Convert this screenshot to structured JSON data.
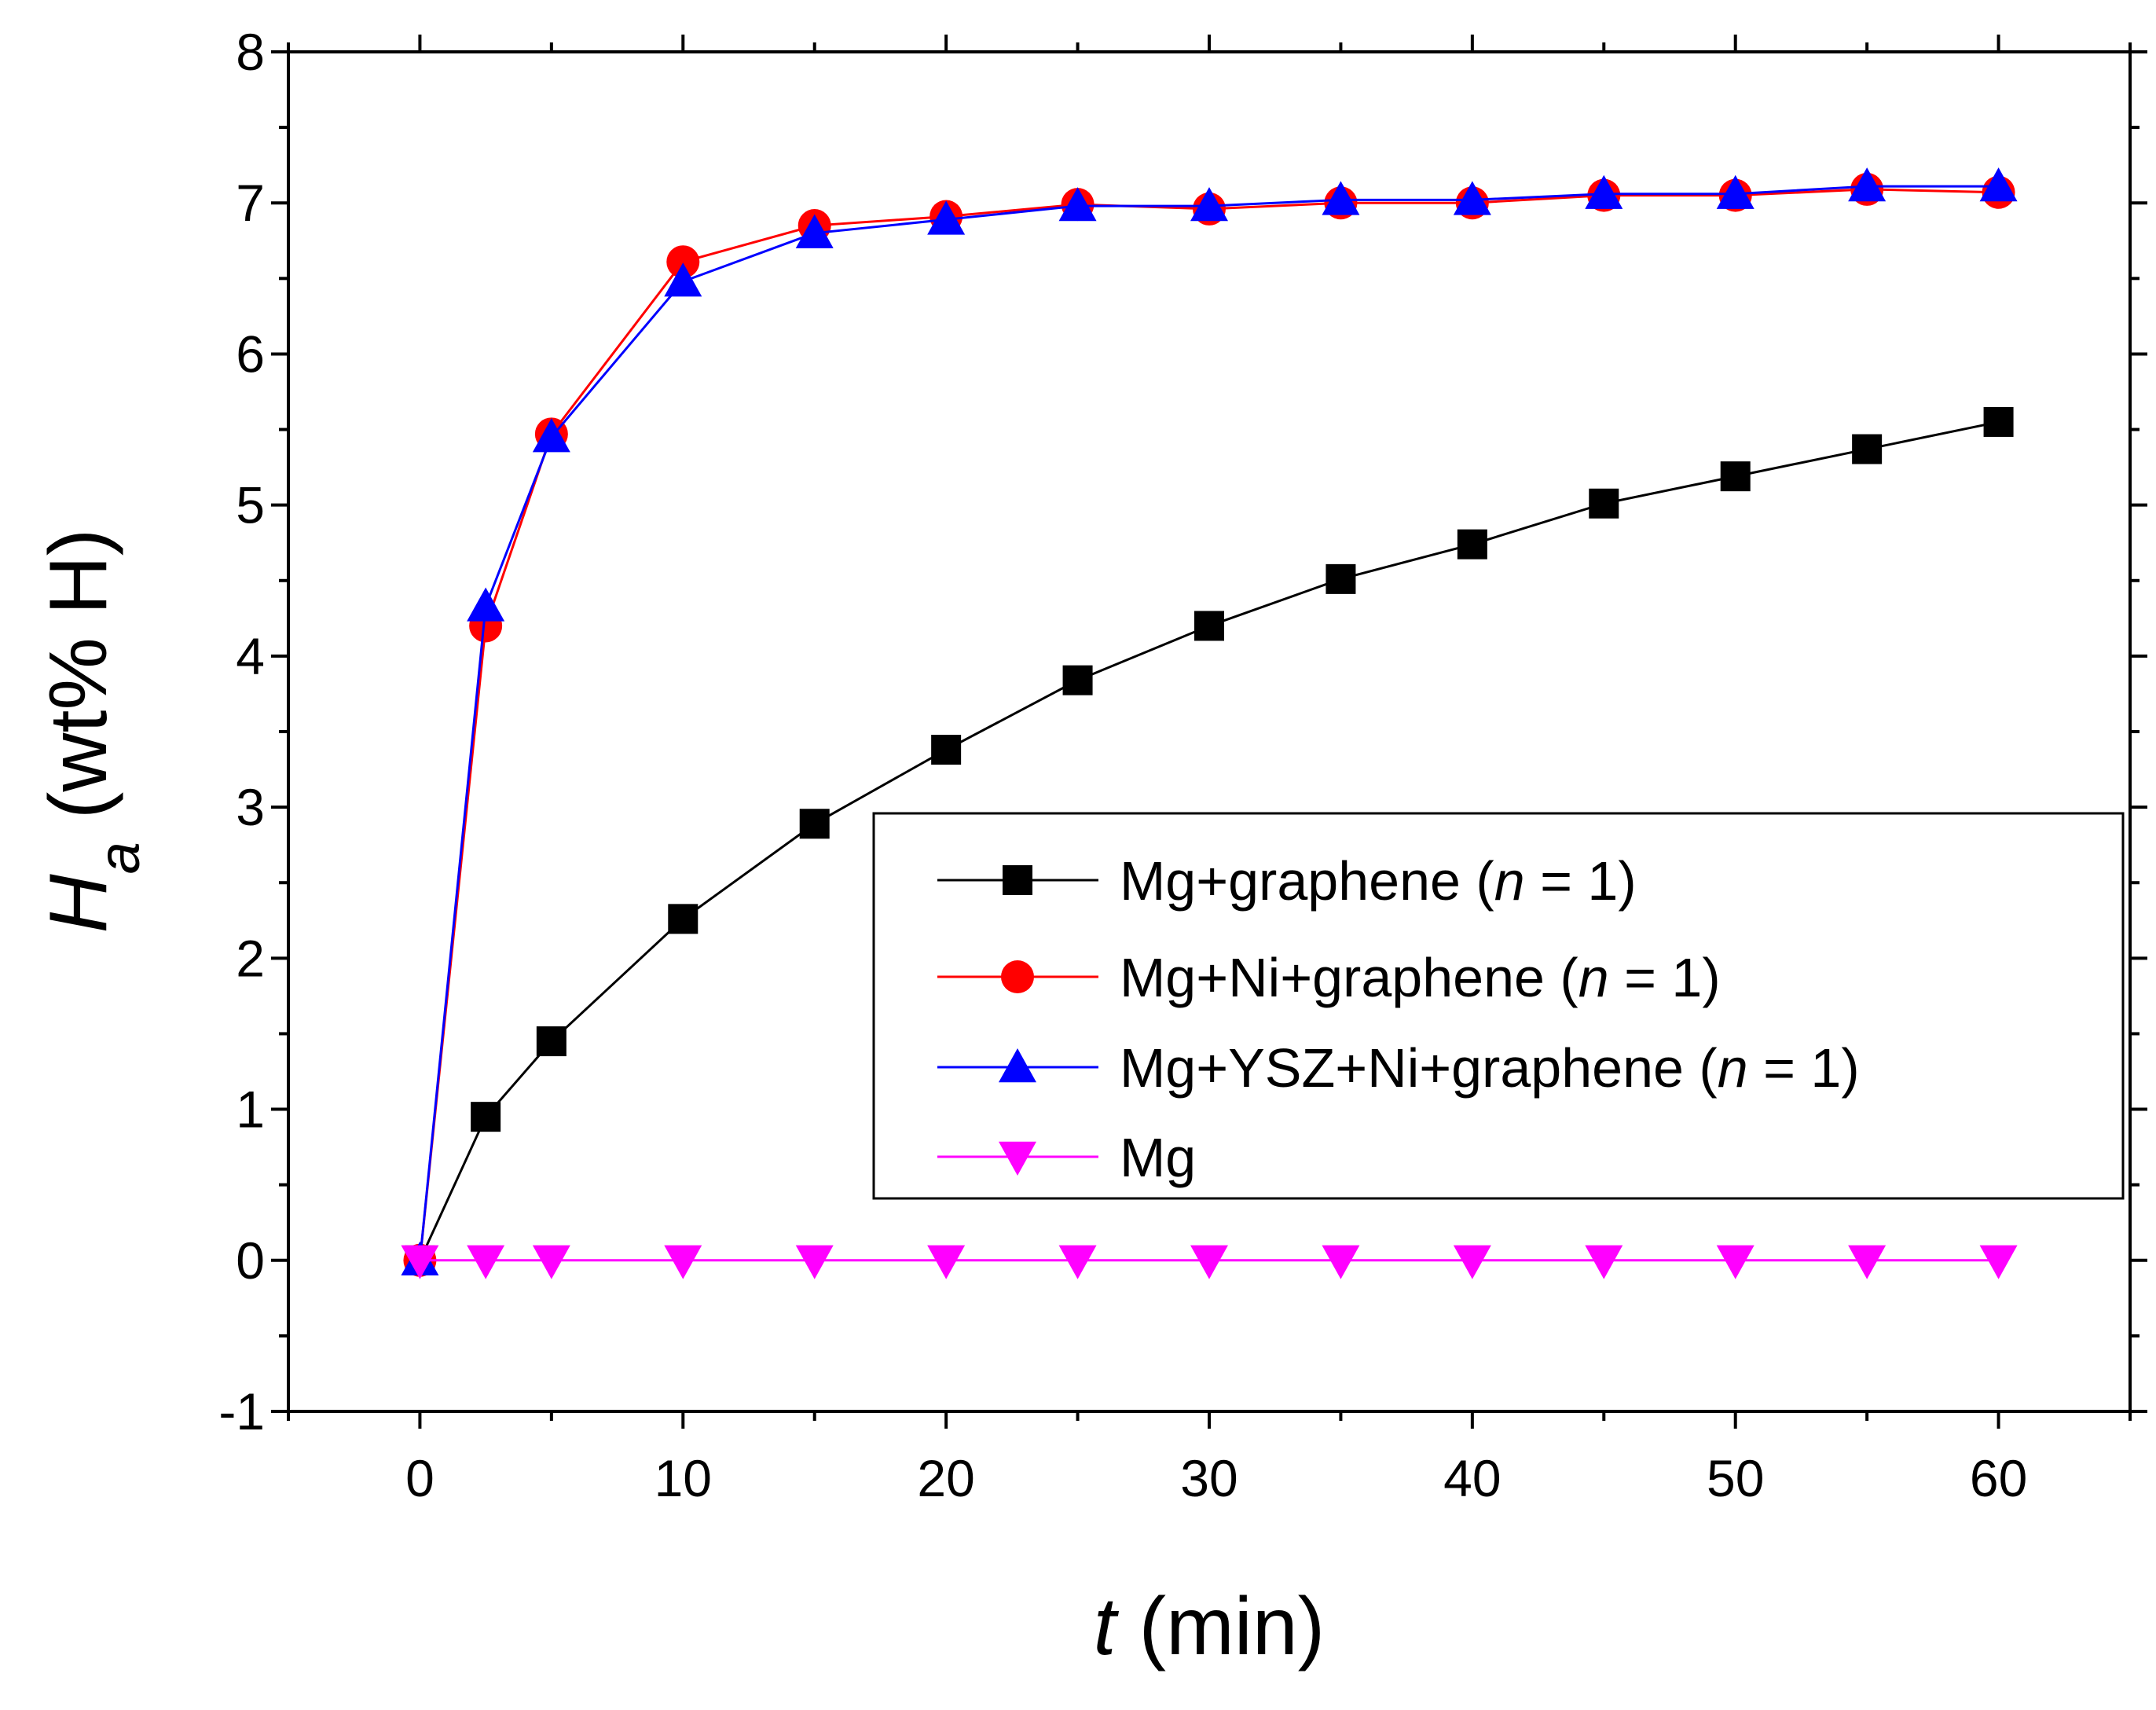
{
  "chart_data": {
    "type": "line",
    "title": "",
    "xlabel": "t (min)",
    "ylabel": "Ha (wt% H)",
    "xlabel_parts": {
      "var": "t",
      "rest": " (min)"
    },
    "ylabel_parts": {
      "var": "H",
      "sub": "a",
      "rest": " (wt% H)"
    },
    "xlim": [
      -5,
      65
    ],
    "ylim": [
      -1,
      8
    ],
    "x_ticks": [
      0,
      10,
      20,
      30,
      40,
      50,
      60
    ],
    "y_ticks": [
      -1,
      0,
      1,
      2,
      3,
      4,
      5,
      6,
      7,
      8
    ],
    "grid": false,
    "legend_position": "center-right",
    "x": [
      0,
      2.5,
      5,
      10,
      15,
      20,
      25,
      30,
      35,
      40,
      45,
      50,
      55,
      60
    ],
    "series": [
      {
        "name": "Mg+graphene (n = 1)",
        "label_prefix": "Mg+graphene (",
        "label_italic": "n",
        "label_suffix": " = 1)",
        "color": "#000000",
        "marker": "square",
        "values": [
          0,
          0.95,
          1.45,
          2.26,
          2.89,
          3.38,
          3.84,
          4.2,
          4.51,
          4.74,
          5.01,
          5.19,
          5.37,
          5.55
        ]
      },
      {
        "name": "Mg+Ni+graphene (n = 1)",
        "label_prefix": "Mg+Ni+graphene (",
        "label_italic": "n",
        "label_suffix": " = 1)",
        "color": "#ff0000",
        "marker": "circle",
        "values": [
          0,
          4.2,
          5.47,
          6.61,
          6.85,
          6.91,
          6.99,
          6.96,
          7.0,
          7.0,
          7.05,
          7.05,
          7.09,
          7.07
        ]
      },
      {
        "name": "Mg+YSZ+Ni+graphene (n = 1)",
        "label_prefix": "Mg+YSZ+Ni+graphene (",
        "label_italic": "n",
        "label_suffix": " = 1)",
        "color": "#0000ff",
        "marker": "triangle-up",
        "values": [
          0,
          4.33,
          5.45,
          6.48,
          6.8,
          6.89,
          6.98,
          6.98,
          7.02,
          7.02,
          7.06,
          7.06,
          7.11,
          7.11
        ]
      },
      {
        "name": "Mg",
        "label_prefix": "Mg",
        "label_italic": "",
        "label_suffix": "",
        "color": "#ff00ff",
        "marker": "triangle-down",
        "values": [
          0,
          0,
          0,
          0,
          0,
          0,
          0,
          0,
          0,
          0,
          0,
          0,
          0,
          0
        ]
      }
    ]
  }
}
